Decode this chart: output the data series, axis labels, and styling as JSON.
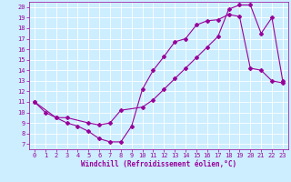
{
  "xlabel": "Windchill (Refroidissement éolien,°C)",
  "bg_color": "#cceeff",
  "line_color": "#990099",
  "grid_color": "#ffffff",
  "xlim": [
    -0.5,
    23.5
  ],
  "ylim": [
    6.5,
    20.5
  ],
  "xticks": [
    0,
    1,
    2,
    3,
    4,
    5,
    6,
    7,
    8,
    9,
    10,
    11,
    12,
    13,
    14,
    15,
    16,
    17,
    18,
    19,
    20,
    21,
    22,
    23
  ],
  "yticks": [
    7,
    8,
    9,
    10,
    11,
    12,
    13,
    14,
    15,
    16,
    17,
    18,
    19,
    20
  ],
  "line1_x": [
    0,
    1,
    2,
    3,
    4,
    5,
    6,
    7,
    8,
    9,
    10,
    11,
    12,
    13,
    14,
    15,
    16,
    17,
    18,
    19,
    20,
    21,
    22,
    23
  ],
  "line1_y": [
    11,
    10,
    9.5,
    9.0,
    8.7,
    8.2,
    7.5,
    7.2,
    7.2,
    8.7,
    12.2,
    14.0,
    15.3,
    16.7,
    17.0,
    18.3,
    18.7,
    18.8,
    19.3,
    19.1,
    14.2,
    14.0,
    13.0,
    12.8
  ],
  "line2_x": [
    0,
    2,
    3,
    5,
    6,
    7,
    8,
    10,
    11,
    12,
    13,
    14,
    15,
    16,
    17,
    18,
    19,
    20,
    21,
    22,
    23
  ],
  "line2_y": [
    11,
    9.5,
    9.5,
    9.0,
    8.8,
    9.0,
    10.2,
    10.5,
    11.2,
    12.2,
    13.2,
    14.2,
    15.2,
    16.2,
    17.2,
    19.8,
    20.2,
    20.2,
    17.5,
    19.0,
    13.0
  ],
  "marker": "D",
  "markersize": 2,
  "linewidth": 0.8,
  "tick_fontsize": 5,
  "xlabel_fontsize": 5.5
}
